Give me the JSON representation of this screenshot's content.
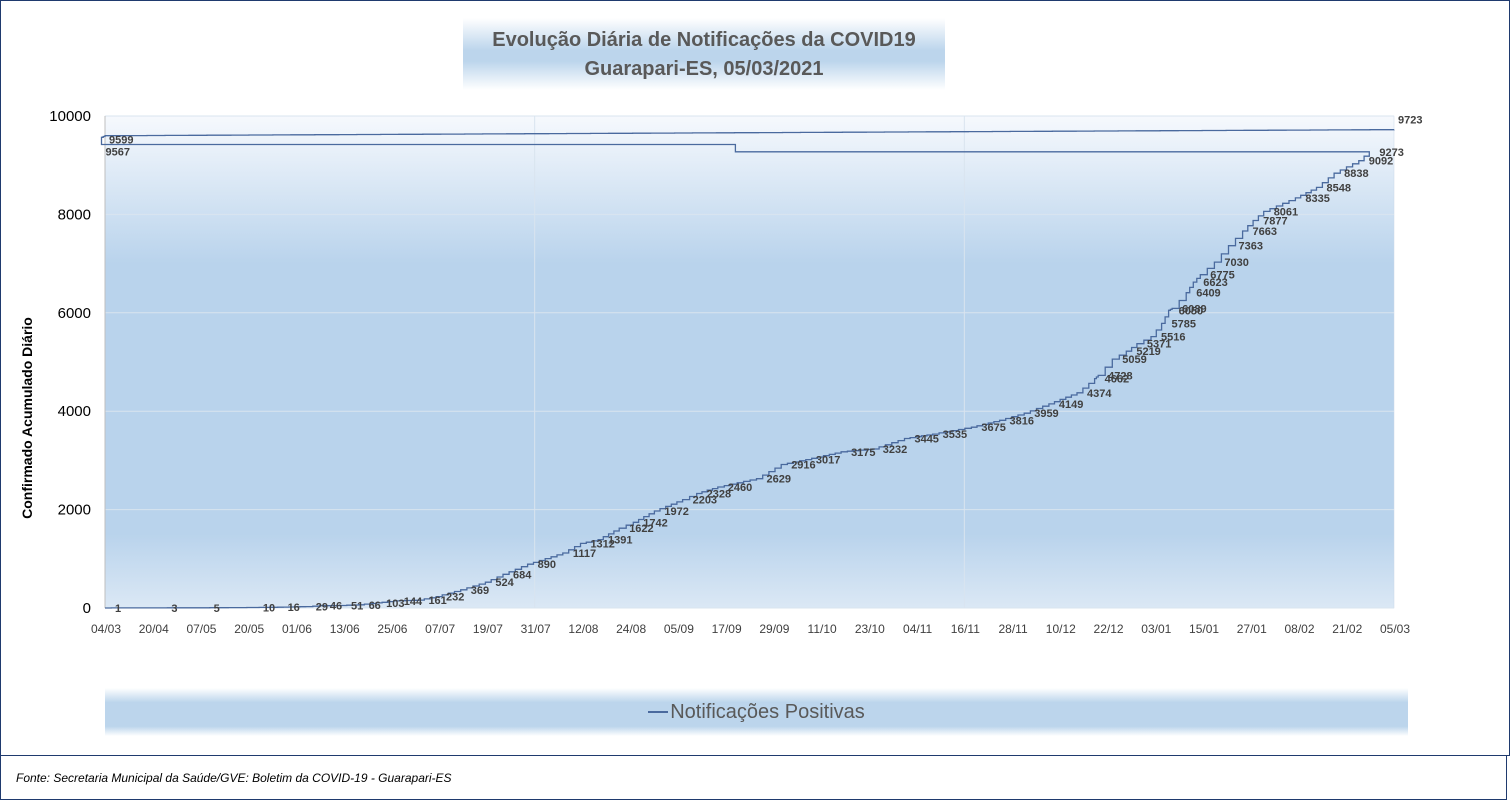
{
  "chart_data": {
    "type": "line",
    "title": "Evolução Diária de Notificações da COVID19",
    "subtitle": "Guarapari-ES, 05/03/2021",
    "ylabel": "Confirmado Acumulado Diário",
    "xlabel": "",
    "ylim": [
      0,
      10000
    ],
    "yticks": [
      "0",
      "2000",
      "4000",
      "6000",
      "8000",
      "10000"
    ],
    "x_tick_labels": [
      "04/03",
      "20/04",
      "07/05",
      "20/05",
      "01/06",
      "13/06",
      "25/06",
      "07/07",
      "19/07",
      "31/07",
      "12/08",
      "24/08",
      "05/09",
      "17/09",
      "29/09",
      "11/10",
      "23/10",
      "04/11",
      "16/11",
      "28/11",
      "10/12",
      "22/12",
      "03/01",
      "15/01",
      "27/01",
      "08/02",
      "21/02",
      "05/03"
    ],
    "series": [
      {
        "name": "Notificações Positivas",
        "color": "#4a6a9e",
        "points": [
          {
            "x": "05/03",
            "y": 1,
            "label": "1"
          },
          {
            "x": "20/03",
            "y": 3,
            "label": "3"
          },
          {
            "x": "01/04",
            "y": 5,
            "label": "5"
          },
          {
            "x": "15/04",
            "y": 10,
            "label": "10"
          },
          {
            "x": "22/04",
            "y": 16,
            "label": "16"
          },
          {
            "x": "30/04",
            "y": 29,
            "label": "29"
          },
          {
            "x": "04/05",
            "y": 46,
            "label": "46"
          },
          {
            "x": "10/05",
            "y": 51,
            "label": "51"
          },
          {
            "x": "15/05",
            "y": 66,
            "label": "66"
          },
          {
            "x": "20/05",
            "y": 103,
            "label": "103"
          },
          {
            "x": "25/05",
            "y": 144,
            "label": "144"
          },
          {
            "x": "01/06",
            "y": 161,
            "label": "161"
          },
          {
            "x": "06/06",
            "y": 232,
            "label": "232"
          },
          {
            "x": "13/06",
            "y": 369,
            "label": "369"
          },
          {
            "x": "20/06",
            "y": 524,
            "label": "524"
          },
          {
            "x": "25/06",
            "y": 684,
            "label": "684"
          },
          {
            "x": "02/07",
            "y": 890,
            "label": "890"
          },
          {
            "x": "12/07",
            "y": 1117,
            "label": "1117"
          },
          {
            "x": "17/07",
            "y": 1312,
            "label": "1312"
          },
          {
            "x": "22/07",
            "y": 1391,
            "label": "1391"
          },
          {
            "x": "28/07",
            "y": 1622,
            "label": "1622"
          },
          {
            "x": "01/08",
            "y": 1742,
            "label": "1742"
          },
          {
            "x": "07/08",
            "y": 1972,
            "label": "1972"
          },
          {
            "x": "15/08",
            "y": 2203,
            "label": "2203"
          },
          {
            "x": "19/08",
            "y": 2328,
            "label": "2328"
          },
          {
            "x": "25/08",
            "y": 2460,
            "label": "2460"
          },
          {
            "x": "05/09",
            "y": 2629,
            "label": "2629"
          },
          {
            "x": "12/09",
            "y": 2916,
            "label": "2916"
          },
          {
            "x": "19/09",
            "y": 3017,
            "label": "3017"
          },
          {
            "x": "29/09",
            "y": 3175,
            "label": "3175"
          },
          {
            "x": "08/10",
            "y": 3232,
            "label": "3232"
          },
          {
            "x": "17/10",
            "y": 3445,
            "label": "3445"
          },
          {
            "x": "25/10",
            "y": 3535,
            "label": "3535"
          },
          {
            "x": "05/11",
            "y": 3675,
            "label": "3675"
          },
          {
            "x": "13/11",
            "y": 3816,
            "label": "3816"
          },
          {
            "x": "20/11",
            "y": 3959,
            "label": "3959"
          },
          {
            "x": "27/11",
            "y": 4149,
            "label": "4149"
          },
          {
            "x": "05/12",
            "y": 4374,
            "label": "4374"
          },
          {
            "x": "10/12",
            "y": 4662,
            "label": "4662"
          },
          {
            "x": "11/12",
            "y": 4728,
            "label": "4728"
          },
          {
            "x": "15/12",
            "y": 5059,
            "label": "5059"
          },
          {
            "x": "19/12",
            "y": 5219,
            "label": "5219"
          },
          {
            "x": "22/12",
            "y": 5371,
            "label": "5371"
          },
          {
            "x": "26/12",
            "y": 5516,
            "label": "5516"
          },
          {
            "x": "29/12",
            "y": 5785,
            "label": "5785"
          },
          {
            "x": "31/12",
            "y": 6050,
            "label": "6050"
          },
          {
            "x": "01/01",
            "y": 6089,
            "label": "6089"
          },
          {
            "x": "05/01",
            "y": 6409,
            "label": "6409"
          },
          {
            "x": "07/01",
            "y": 6623,
            "label": "6623"
          },
          {
            "x": "09/01",
            "y": 6775,
            "label": "6775"
          },
          {
            "x": "13/01",
            "y": 7030,
            "label": "7030"
          },
          {
            "x": "17/01",
            "y": 7363,
            "label": "7363"
          },
          {
            "x": "21/01",
            "y": 7663,
            "label": "7663"
          },
          {
            "x": "24/01",
            "y": 7877,
            "label": "7877"
          },
          {
            "x": "27/01",
            "y": 8061,
            "label": "8061"
          },
          {
            "x": "05/02",
            "y": 8335,
            "label": "8335"
          },
          {
            "x": "11/02",
            "y": 8548,
            "label": "8548"
          },
          {
            "x": "16/02",
            "y": 8838,
            "label": "8838"
          },
          {
            "x": "23/02",
            "y": 9092,
            "label": "9092"
          },
          {
            "x": "26/02",
            "y": 9273,
            "label": "9273"
          },
          {
            "x": "03/03",
            "y": 9567,
            "label": "9567"
          },
          {
            "x": "04/03",
            "y": 9599,
            "label": "9599"
          },
          {
            "x": "05/03",
            "y": 9723,
            "label": "9723"
          }
        ]
      }
    ],
    "grid": true,
    "legend_position": "bottom",
    "colors": {
      "line": "#4a6a9e",
      "plot_top": "#f4f8fc",
      "plot_mid": "#b9d3ec",
      "axis": "#000000"
    }
  },
  "footer": {
    "source": "Fonte: Secretaria Municipal da Saúde/GVE: Boletim da COVID-19 - Guarapari-ES"
  }
}
